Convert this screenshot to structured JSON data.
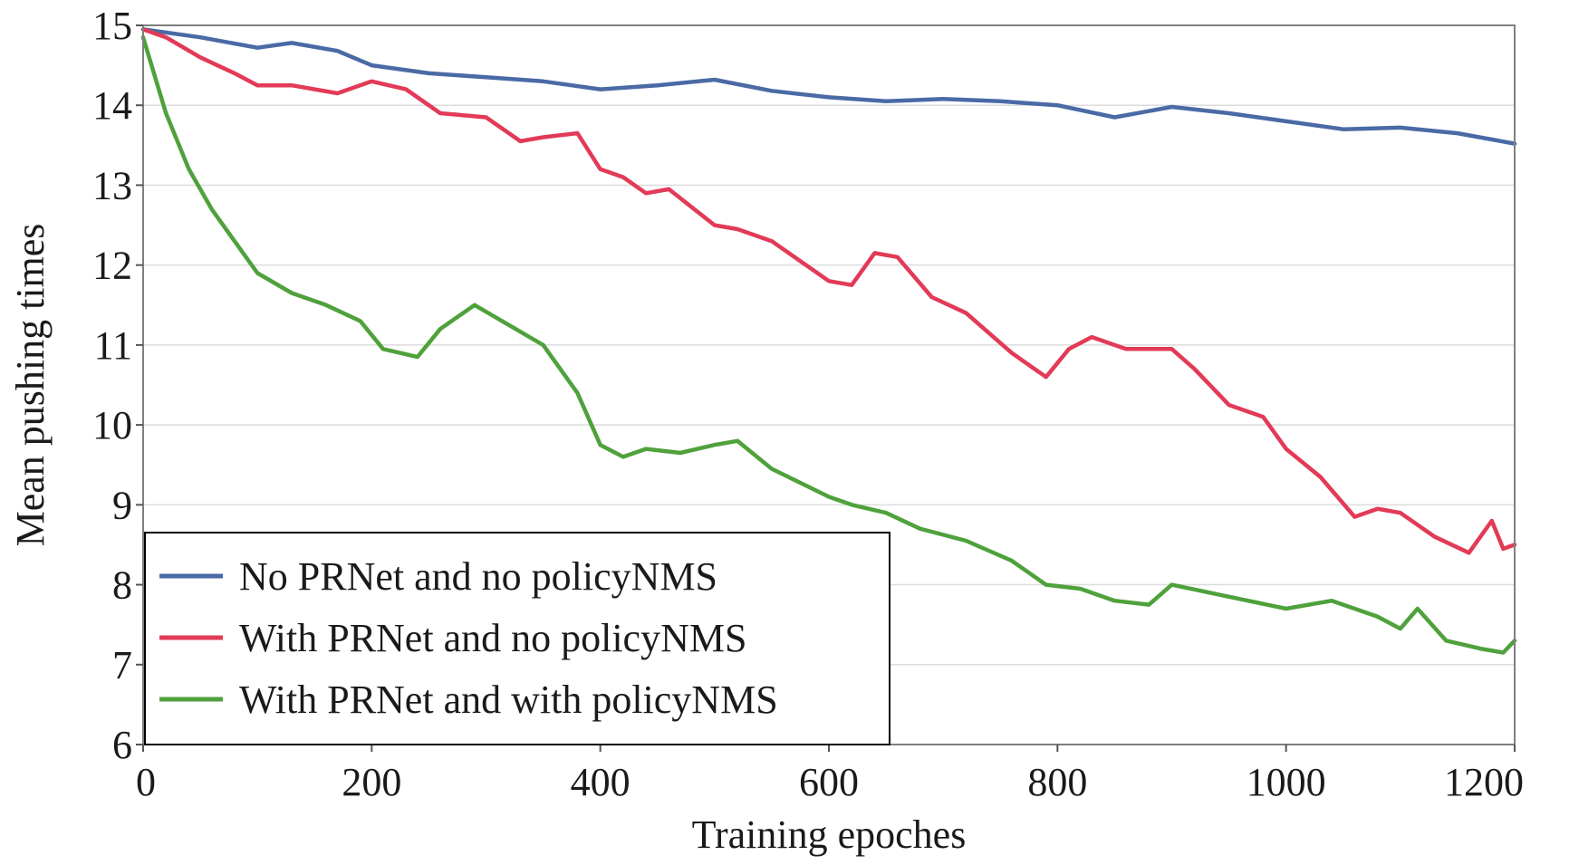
{
  "chart_data": {
    "type": "line",
    "title": "",
    "xlabel": "Training epoches",
    "ylabel": "Mean pushing times",
    "xlim": [
      0,
      1200
    ],
    "ylim": [
      6,
      15
    ],
    "xticks": [
      0,
      200,
      400,
      600,
      800,
      1000,
      1200
    ],
    "yticks": [
      6,
      7,
      8,
      9,
      10,
      11,
      12,
      13,
      14,
      15
    ],
    "grid": "horizontal",
    "legend_position": "bottom-left",
    "series": [
      {
        "name": "No PRNet and no policyNMS",
        "color": "#4a6aa5",
        "x": [
          0,
          50,
          100,
          130,
          170,
          200,
          250,
          300,
          350,
          400,
          450,
          500,
          550,
          600,
          650,
          700,
          750,
          800,
          850,
          900,
          950,
          1000,
          1050,
          1100,
          1150,
          1200
        ],
        "y": [
          14.95,
          14.85,
          14.72,
          14.78,
          14.68,
          14.5,
          14.4,
          14.35,
          14.3,
          14.2,
          14.25,
          14.32,
          14.18,
          14.1,
          14.05,
          14.08,
          14.05,
          14.0,
          13.85,
          13.98,
          13.9,
          13.8,
          13.7,
          13.72,
          13.65,
          13.52
        ]
      },
      {
        "name": "With PRNet and no policyNMS",
        "color": "#e23a57",
        "x": [
          0,
          20,
          50,
          80,
          100,
          130,
          170,
          200,
          230,
          260,
          300,
          330,
          350,
          380,
          400,
          420,
          440,
          460,
          500,
          520,
          550,
          600,
          620,
          640,
          660,
          690,
          720,
          760,
          790,
          810,
          830,
          860,
          900,
          920,
          950,
          980,
          1000,
          1030,
          1060,
          1080,
          1100,
          1130,
          1160,
          1180,
          1190,
          1200
        ],
        "y": [
          14.95,
          14.85,
          14.6,
          14.4,
          14.25,
          14.25,
          14.15,
          14.3,
          14.2,
          13.9,
          13.85,
          13.55,
          13.6,
          13.65,
          13.2,
          13.1,
          12.9,
          12.95,
          12.5,
          12.45,
          12.3,
          11.8,
          11.75,
          12.15,
          12.1,
          11.6,
          11.4,
          10.9,
          10.6,
          10.95,
          11.1,
          10.95,
          10.95,
          10.7,
          10.25,
          10.1,
          9.7,
          9.35,
          8.85,
          8.95,
          8.9,
          8.6,
          8.4,
          8.8,
          8.45,
          8.5
        ]
      },
      {
        "name": "With PRNet and with policyNMS",
        "color": "#4fa13c",
        "x": [
          0,
          20,
          40,
          60,
          80,
          100,
          130,
          160,
          190,
          210,
          240,
          260,
          290,
          320,
          350,
          380,
          400,
          420,
          440,
          470,
          500,
          520,
          550,
          600,
          620,
          650,
          680,
          720,
          760,
          790,
          820,
          850,
          880,
          900,
          950,
          1000,
          1040,
          1080,
          1100,
          1115,
          1140,
          1170,
          1190,
          1200
        ],
        "y": [
          14.85,
          13.9,
          13.2,
          12.7,
          12.3,
          11.9,
          11.65,
          11.5,
          11.3,
          10.95,
          10.85,
          11.2,
          11.5,
          11.25,
          11.0,
          10.4,
          9.75,
          9.6,
          9.7,
          9.65,
          9.75,
          9.8,
          9.45,
          9.1,
          9.0,
          8.9,
          8.7,
          8.55,
          8.3,
          8.0,
          7.95,
          7.8,
          7.75,
          8.0,
          7.85,
          7.7,
          7.8,
          7.6,
          7.45,
          7.7,
          7.3,
          7.2,
          7.15,
          7.3
        ]
      }
    ]
  }
}
